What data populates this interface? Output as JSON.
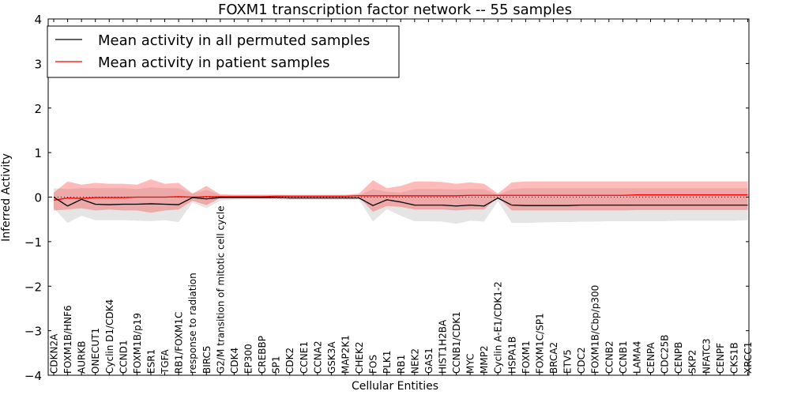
{
  "chart_data": {
    "type": "line",
    "title": "FOXM1 transcription factor network -- 55 samples",
    "xlabel": "Cellular Entities",
    "ylabel": "Inferred Activity",
    "ylim": [
      -4,
      4
    ],
    "yticks": [
      "−4",
      "−3",
      "−2",
      "−1",
      "0",
      "1",
      "2",
      "3",
      "4"
    ],
    "grid": false,
    "legend_position": "top-left",
    "categories": [
      "CDKN2A",
      "FOXM1B/HNF6",
      "AURKB",
      "ONECUT1",
      "Cyclin D1/CDK4",
      "CCND1",
      "FOXM1B/p19",
      "ESR1",
      "TGFA",
      "RB1/FOXM1C",
      "response to radiation",
      "BIRC5",
      "G2/M transition of mitotic cell cycle",
      "CDK4",
      "EP300",
      "CREBBP",
      "SP1",
      "CDK2",
      "CCNE1",
      "CCNA2",
      "GSK3A",
      "MAP2K1",
      "CHEK2",
      "FOS",
      "PLK1",
      "RB1",
      "NEK2",
      "GAS1",
      "HIST1H2BA",
      "CCNB1/CDK1",
      "MYC",
      "MMP2",
      "Cyclin A-E1/CDK1-2",
      "HSPA1B",
      "FOXM1",
      "FOXM1C/SP1",
      "BRCA2",
      "ETV5",
      "CDC2",
      "FOXM1B/Cbp/p300",
      "CCNB2",
      "CCNB1",
      "LAMA4",
      "CENPA",
      "CDC25B",
      "CENPB",
      "SKP2",
      "NFATC3",
      "CENPF",
      "CKS1B",
      "XRCC1"
    ],
    "series": [
      {
        "name": "Mean activity in all permuted samples",
        "color": "#000000",
        "values": [
          0.0,
          -0.2,
          -0.05,
          -0.16,
          -0.17,
          -0.16,
          -0.16,
          -0.15,
          -0.16,
          -0.17,
          -0.01,
          -0.04,
          -0.01,
          -0.01,
          -0.01,
          -0.01,
          -0.01,
          -0.02,
          -0.02,
          -0.02,
          -0.02,
          -0.02,
          -0.02,
          -0.19,
          -0.06,
          -0.11,
          -0.18,
          -0.18,
          -0.18,
          -0.2,
          -0.18,
          -0.2,
          -0.02,
          -0.18,
          -0.19,
          -0.19,
          -0.19,
          -0.19,
          -0.18,
          -0.18,
          -0.18,
          -0.18,
          -0.18,
          -0.18,
          -0.18,
          -0.18,
          -0.18,
          -0.18,
          -0.18,
          -0.18,
          -0.18
        ],
        "band_low": [
          -0.25,
          -0.58,
          -0.42,
          -0.52,
          -0.52,
          -0.52,
          -0.53,
          -0.54,
          -0.52,
          -0.56,
          -0.12,
          -0.25,
          -0.08,
          -0.06,
          -0.05,
          -0.05,
          -0.05,
          -0.06,
          -0.06,
          -0.06,
          -0.06,
          -0.06,
          -0.06,
          -0.55,
          -0.27,
          -0.42,
          -0.54,
          -0.54,
          -0.55,
          -0.6,
          -0.53,
          -0.55,
          -0.09,
          -0.58,
          -0.58,
          -0.57,
          -0.56,
          -0.56,
          -0.55,
          -0.55,
          -0.54,
          -0.54,
          -0.54,
          -0.54,
          -0.54,
          -0.53,
          -0.53,
          -0.53,
          -0.53,
          -0.53,
          -0.52
        ],
        "band_high": [
          0.2,
          0.18,
          0.2,
          0.2,
          0.2,
          0.2,
          0.18,
          0.22,
          0.2,
          0.2,
          0.08,
          0.16,
          0.05,
          0.05,
          0.05,
          0.05,
          0.05,
          0.04,
          0.04,
          0.04,
          0.04,
          0.04,
          0.04,
          0.18,
          0.12,
          0.1,
          0.18,
          0.18,
          0.18,
          0.17,
          0.18,
          0.18,
          0.05,
          0.18,
          0.2,
          0.2,
          0.2,
          0.2,
          0.2,
          0.2,
          0.2,
          0.2,
          0.2,
          0.2,
          0.2,
          0.2,
          0.2,
          0.2,
          0.2,
          0.2,
          0.2
        ]
      },
      {
        "name": "Mean activity in patient samples",
        "color": "#ff0000",
        "values": [
          -0.07,
          -0.02,
          -0.03,
          -0.01,
          -0.01,
          -0.01,
          0.0,
          0.0,
          0.0,
          0.01,
          0.0,
          0.01,
          0.01,
          0.01,
          0.01,
          0.01,
          0.02,
          0.02,
          0.02,
          0.02,
          0.02,
          0.02,
          0.03,
          0.03,
          0.03,
          0.03,
          0.03,
          0.03,
          0.03,
          0.03,
          0.04,
          0.04,
          0.04,
          0.04,
          0.04,
          0.04,
          0.04,
          0.04,
          0.04,
          0.04,
          0.04,
          0.04,
          0.05,
          0.05,
          0.05,
          0.05,
          0.05,
          0.05,
          0.05,
          0.05,
          0.05
        ],
        "band_low": [
          -0.3,
          -0.28,
          -0.25,
          -0.3,
          -0.28,
          -0.3,
          -0.3,
          -0.35,
          -0.3,
          -0.28,
          -0.08,
          -0.18,
          -0.02,
          -0.01,
          -0.01,
          -0.01,
          -0.01,
          0.0,
          0.0,
          0.0,
          0.0,
          0.0,
          0.0,
          -0.33,
          -0.2,
          -0.22,
          -0.28,
          -0.28,
          -0.28,
          -0.3,
          -0.28,
          -0.28,
          0.0,
          -0.3,
          -0.3,
          -0.3,
          -0.3,
          -0.3,
          -0.3,
          -0.3,
          -0.3,
          -0.3,
          -0.29,
          -0.29,
          -0.29,
          -0.29,
          -0.29,
          -0.29,
          -0.29,
          -0.29,
          -0.29
        ],
        "band_high": [
          0.1,
          0.35,
          0.28,
          0.32,
          0.3,
          0.3,
          0.28,
          0.4,
          0.3,
          0.32,
          0.08,
          0.25,
          0.06,
          0.05,
          0.05,
          0.05,
          0.05,
          0.05,
          0.05,
          0.05,
          0.05,
          0.05,
          0.08,
          0.38,
          0.2,
          0.25,
          0.35,
          0.35,
          0.34,
          0.3,
          0.33,
          0.3,
          0.08,
          0.33,
          0.35,
          0.35,
          0.35,
          0.35,
          0.35,
          0.35,
          0.35,
          0.35,
          0.35,
          0.35,
          0.35,
          0.35,
          0.35,
          0.35,
          0.35,
          0.35,
          0.35
        ]
      }
    ]
  }
}
